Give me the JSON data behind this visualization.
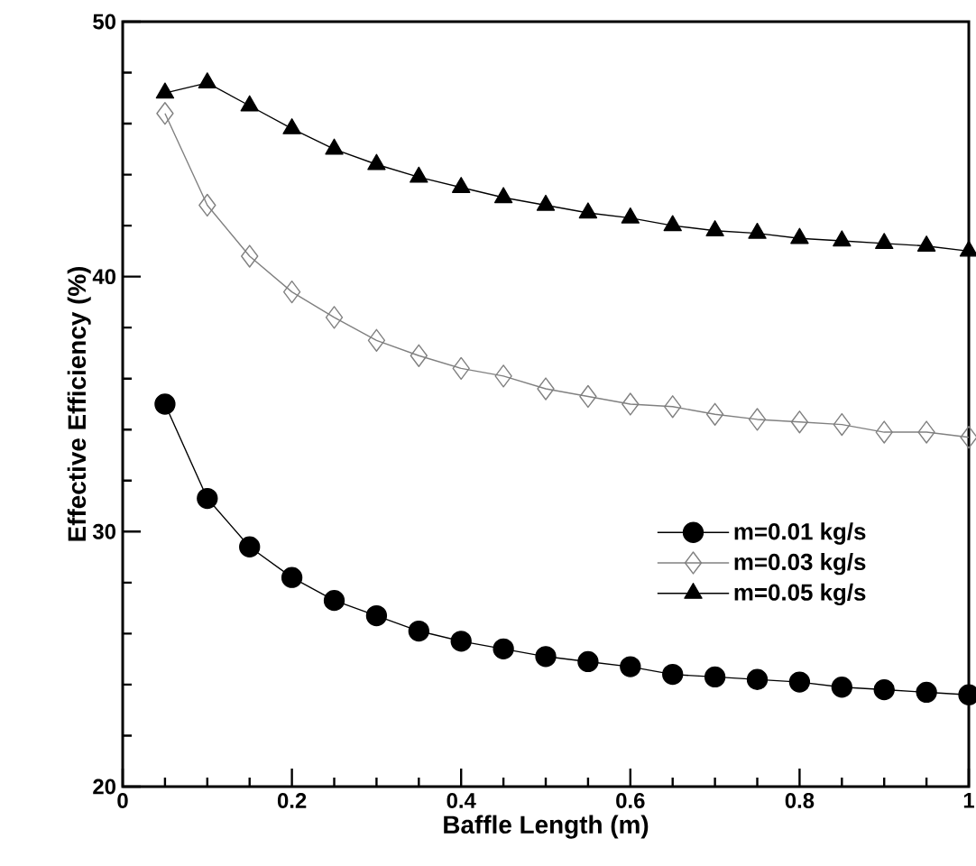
{
  "chart_data": {
    "type": "line",
    "xlabel": "Baffle Length (m)",
    "ylabel": "Effective Efficiency (%)",
    "x": [
      0.05,
      0.1,
      0.15,
      0.2,
      0.25,
      0.3,
      0.35,
      0.4,
      0.45,
      0.5,
      0.55,
      0.6,
      0.65,
      0.7,
      0.75,
      0.8,
      0.85,
      0.9,
      0.95,
      1.0
    ],
    "series": [
      {
        "name": "m=0.01 kg/s",
        "color": "#000000",
        "marker": "circle",
        "values": [
          35.0,
          31.3,
          29.4,
          28.2,
          27.3,
          26.7,
          26.1,
          25.7,
          25.4,
          25.1,
          24.9,
          24.7,
          24.4,
          24.3,
          24.2,
          24.1,
          23.9,
          23.8,
          23.7,
          23.6
        ]
      },
      {
        "name": "m=0.03 kg/s",
        "color": "#808080",
        "marker": "diamond",
        "values": [
          46.4,
          42.8,
          40.8,
          39.4,
          38.4,
          37.5,
          36.9,
          36.4,
          36.1,
          35.6,
          35.3,
          35.0,
          34.9,
          34.6,
          34.4,
          34.3,
          34.2,
          33.9,
          33.9,
          33.7
        ]
      },
      {
        "name": "m=0.05 kg/s",
        "color": "#000000",
        "marker": "triangle",
        "values": [
          47.2,
          47.6,
          46.7,
          45.8,
          45.0,
          44.4,
          43.9,
          43.5,
          43.1,
          42.8,
          42.5,
          42.3,
          42.0,
          41.8,
          41.7,
          41.5,
          41.4,
          41.3,
          41.2,
          41.0
        ]
      }
    ],
    "xlim": [
      0,
      1
    ],
    "ylim": [
      20,
      50
    ],
    "xticks": [
      0,
      0.2,
      0.4,
      0.6,
      0.8,
      1
    ],
    "yticks": [
      20,
      30,
      40,
      50
    ],
    "legend": "bottom right",
    "grid": false
  }
}
